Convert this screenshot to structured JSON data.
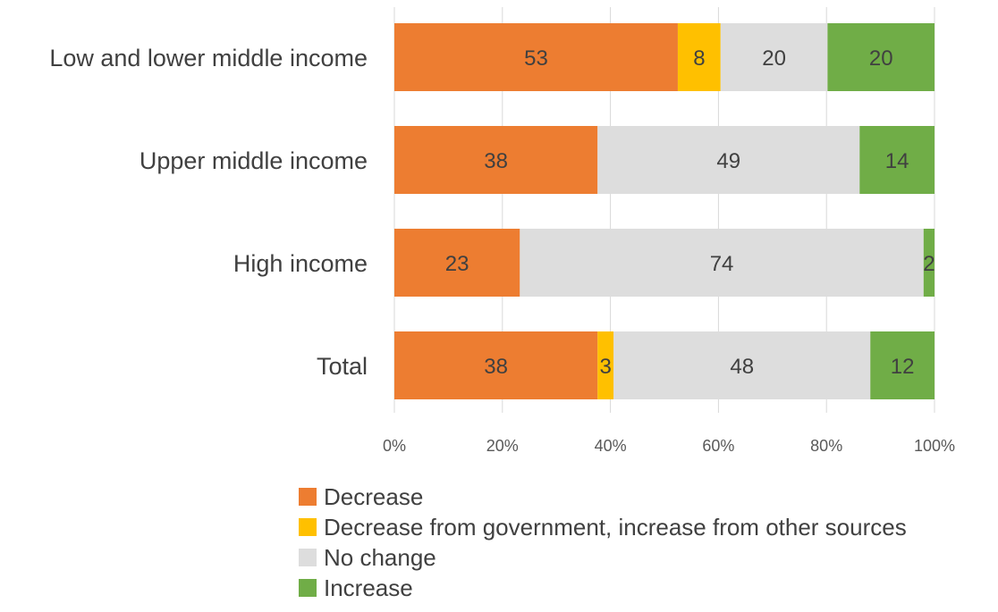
{
  "chart_data": {
    "type": "bar",
    "orientation": "horizontal",
    "stacked": true,
    "percent_stacked": true,
    "categories": [
      "Low and lower middle income",
      "Upper middle income",
      "High income",
      "Total"
    ],
    "series": [
      {
        "name": "Decrease",
        "color": "#ED7D31",
        "values": [
          53,
          38,
          23,
          38
        ]
      },
      {
        "name": "Decrease from government, increase from other sources",
        "color": "#FFC000",
        "values": [
          8,
          0,
          0,
          3
        ]
      },
      {
        "name": "No change",
        "color": "#DDDDDD",
        "values": [
          20,
          49,
          74,
          48
        ]
      },
      {
        "name": "Increase",
        "color": "#70AD47",
        "values": [
          20,
          14,
          2,
          12
        ]
      }
    ],
    "xlim": [
      0,
      100
    ],
    "x_ticks": [
      "0%",
      "20%",
      "40%",
      "60%",
      "80%",
      "100%"
    ],
    "gridlines": true,
    "legend_position": "bottom"
  }
}
